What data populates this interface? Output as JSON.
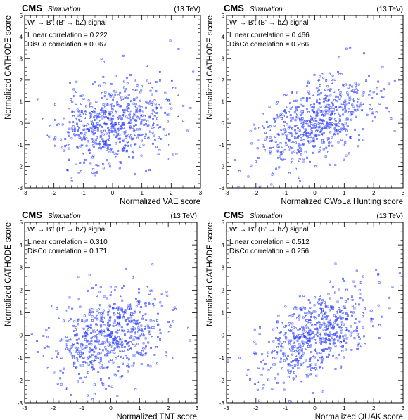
{
  "header": {
    "experiment": "CMS",
    "tag": "Simulation",
    "energy": "(13 TeV)"
  },
  "chart_data": [
    {
      "type": "scatter",
      "signal_label": "W' → B't (B' → bZ) signal",
      "annotations": [
        "Linear correlation = 0.222",
        "DisCo correlation = 0.067"
      ],
      "linear_correlation": 0.222,
      "disco_correlation": 0.067,
      "xlabel": "Normalized VAE score",
      "ylabel": "Normalized CATHODE score",
      "xlim": [
        -3,
        3
      ],
      "ylim": [
        -3,
        5
      ],
      "xticks": [
        -3,
        -2,
        -1,
        0,
        1,
        2,
        3
      ],
      "yticks": [
        -3,
        -2,
        -1,
        0,
        1,
        2,
        3,
        4,
        5
      ],
      "marker_color": "#3a4cff",
      "n_points": 600,
      "seed": 11
    },
    {
      "type": "scatter",
      "signal_label": "W' → B't (B' → bZ) signal",
      "annotations": [
        "Linear correlation = 0.466",
        "DisCo correlation = 0.266"
      ],
      "linear_correlation": 0.466,
      "disco_correlation": 0.266,
      "xlabel": "Normalized CWoLa Hunting score",
      "ylabel": "Normalized CATHODE score",
      "xlim": [
        -3,
        3
      ],
      "ylim": [
        -3,
        5
      ],
      "xticks": [
        -3,
        -2,
        -1,
        0,
        1,
        2,
        3
      ],
      "yticks": [
        -3,
        -2,
        -1,
        0,
        1,
        2,
        3,
        4,
        5
      ],
      "marker_color": "#3a4cff",
      "n_points": 600,
      "seed": 23
    },
    {
      "type": "scatter",
      "signal_label": "W' → B't (B' → bZ) signal",
      "annotations": [
        "Linear correlation = 0.310",
        "DisCo correlation = 0.171"
      ],
      "linear_correlation": 0.31,
      "disco_correlation": 0.171,
      "xlabel": "Normalized TNT score",
      "ylabel": "Normalized CATHODE score",
      "xlim": [
        -3,
        3
      ],
      "ylim": [
        -3,
        5
      ],
      "xticks": [
        -3,
        -2,
        -1,
        0,
        1,
        2,
        3
      ],
      "yticks": [
        -3,
        -2,
        -1,
        0,
        1,
        2,
        3,
        4,
        5
      ],
      "marker_color": "#3a4cff",
      "n_points": 600,
      "seed": 37
    },
    {
      "type": "scatter",
      "signal_label": "W' → B't (B' → bZ) signal",
      "annotations": [
        "Linear correlation = 0.512",
        "DisCo correlation = 0.256"
      ],
      "linear_correlation": 0.512,
      "disco_correlation": 0.256,
      "xlabel": "Normalized QUAK score",
      "ylabel": "Normalized CATHODE score",
      "xlim": [
        -3,
        3
      ],
      "ylim": [
        -3,
        5
      ],
      "xticks": [
        -3,
        -2,
        -1,
        0,
        1,
        2,
        3
      ],
      "yticks": [
        -3,
        -2,
        -1,
        0,
        1,
        2,
        3,
        4,
        5
      ],
      "marker_color": "#3a4cff",
      "n_points": 600,
      "seed": 53
    }
  ]
}
